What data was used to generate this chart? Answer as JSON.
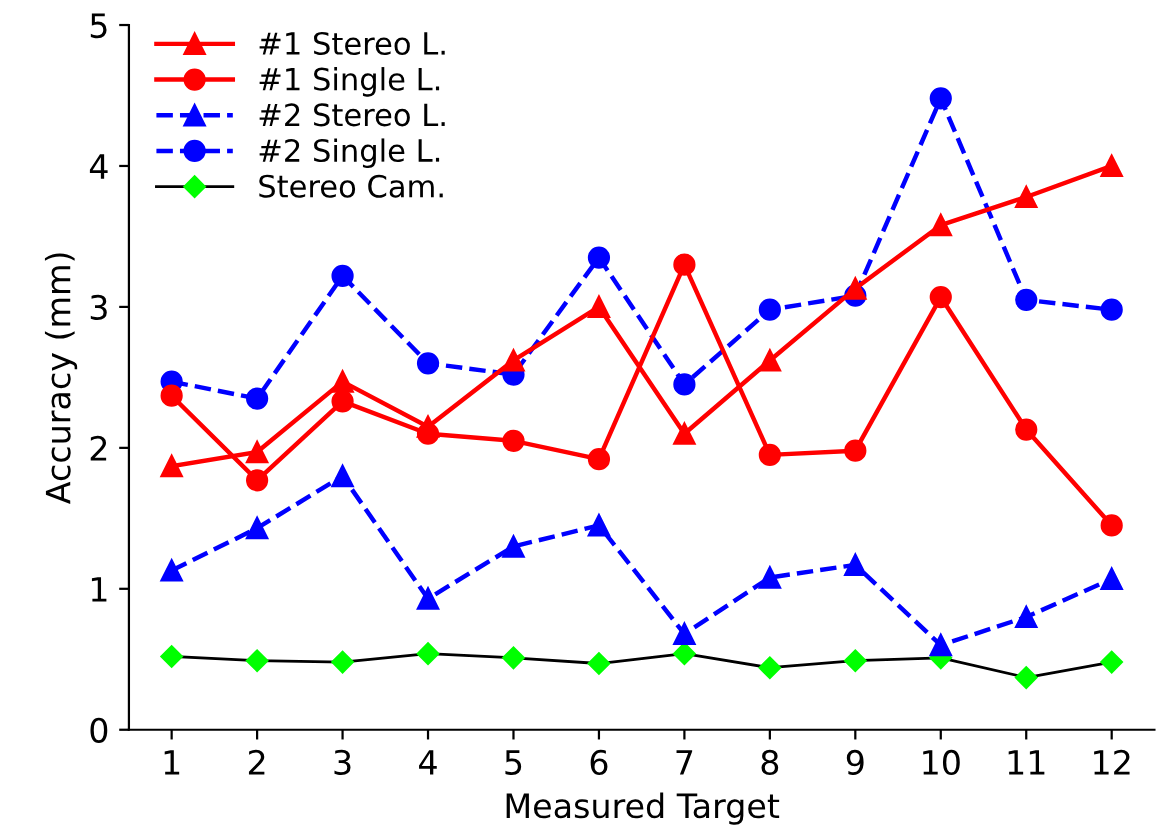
{
  "chart_data": {
    "type": "line",
    "xlabel": "Measured Target",
    "ylabel": "Accuracy (mm)",
    "categories": [
      "1",
      "2",
      "3",
      "4",
      "5",
      "6",
      "7",
      "8",
      "9",
      "10",
      "11",
      "12"
    ],
    "ylim": [
      0,
      5
    ],
    "yticks": [
      0,
      1,
      2,
      3,
      4,
      5
    ],
    "grid": false,
    "legend": "top left",
    "series": [
      {
        "name": "#1 Stereo L.",
        "color": "#ff0000",
        "marker": "triangle",
        "line_style": "solid",
        "values": [
          1.87,
          1.97,
          2.47,
          2.15,
          2.62,
          3.0,
          2.1,
          2.62,
          3.13,
          3.58,
          3.78,
          4.0
        ]
      },
      {
        "name": "#1 Single L.",
        "color": "#ff0000",
        "marker": "circle",
        "line_style": "solid",
        "values": [
          2.37,
          1.77,
          2.33,
          2.1,
          2.05,
          1.92,
          3.3,
          1.95,
          1.98,
          3.07,
          2.13,
          1.45
        ]
      },
      {
        "name": "#2 Stereo L.",
        "color": "#0000ff",
        "marker": "triangle",
        "line_style": "dashed",
        "values": [
          1.13,
          1.43,
          1.8,
          0.93,
          1.3,
          1.45,
          0.68,
          1.08,
          1.17,
          0.6,
          0.8,
          1.07
        ]
      },
      {
        "name": "#2 Single L.",
        "color": "#0000ff",
        "marker": "circle",
        "line_style": "dashed",
        "values": [
          2.47,
          2.35,
          3.22,
          2.6,
          2.52,
          3.35,
          2.45,
          2.98,
          3.08,
          4.48,
          3.05,
          2.98
        ]
      },
      {
        "name": "Stereo Cam.",
        "color": "#00ff00",
        "marker": "diamond",
        "line_style": "solid",
        "values": [
          0.52,
          0.49,
          0.48,
          0.54,
          0.51,
          0.47,
          0.54,
          0.44,
          0.49,
          0.51,
          0.37,
          0.48
        ]
      }
    ]
  }
}
